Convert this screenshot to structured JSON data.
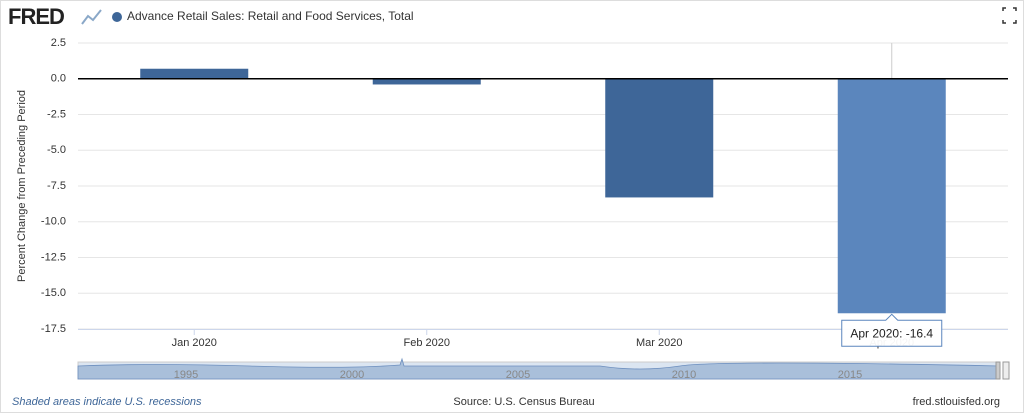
{
  "logo": "FRED",
  "chart_data": {
    "type": "bar",
    "title": "Advance Retail Sales: Retail and Food Services, Total",
    "legend_color": "#3e6698",
    "y_label": "Percent Change from Preceding Period",
    "categories": [
      "Jan 2020",
      "Feb 2020",
      "Mar 2020",
      "Apr 2020"
    ],
    "values": [
      0.7,
      -0.4,
      -8.3,
      -16.4
    ],
    "colors": [
      "#3e6698",
      "#3e6698",
      "#3e6698",
      "#5b86bd"
    ],
    "ylim": [
      -17.5,
      2.5
    ],
    "yticks": [
      2.5,
      {
        "value": 0,
        "label": "0.0"
      },
      -2.5,
      {
        "value": -5,
        "label": "-5.0"
      },
      -7.5,
      {
        "value": -10,
        "label": "-10.0"
      },
      -12.5,
      {
        "value": -15,
        "label": "-15.0"
      },
      -17.5
    ],
    "grid": true,
    "tooltip": "Apr 2020: -16.4"
  },
  "navigator": {
    "labels": [
      "1995",
      "2000",
      "2005",
      "2010",
      "2015"
    ]
  },
  "footer": {
    "note": "Shaded areas indicate U.S. recessions",
    "source": "Source: U.S. Census Bureau",
    "url": "fred.stlouisfed.org"
  }
}
